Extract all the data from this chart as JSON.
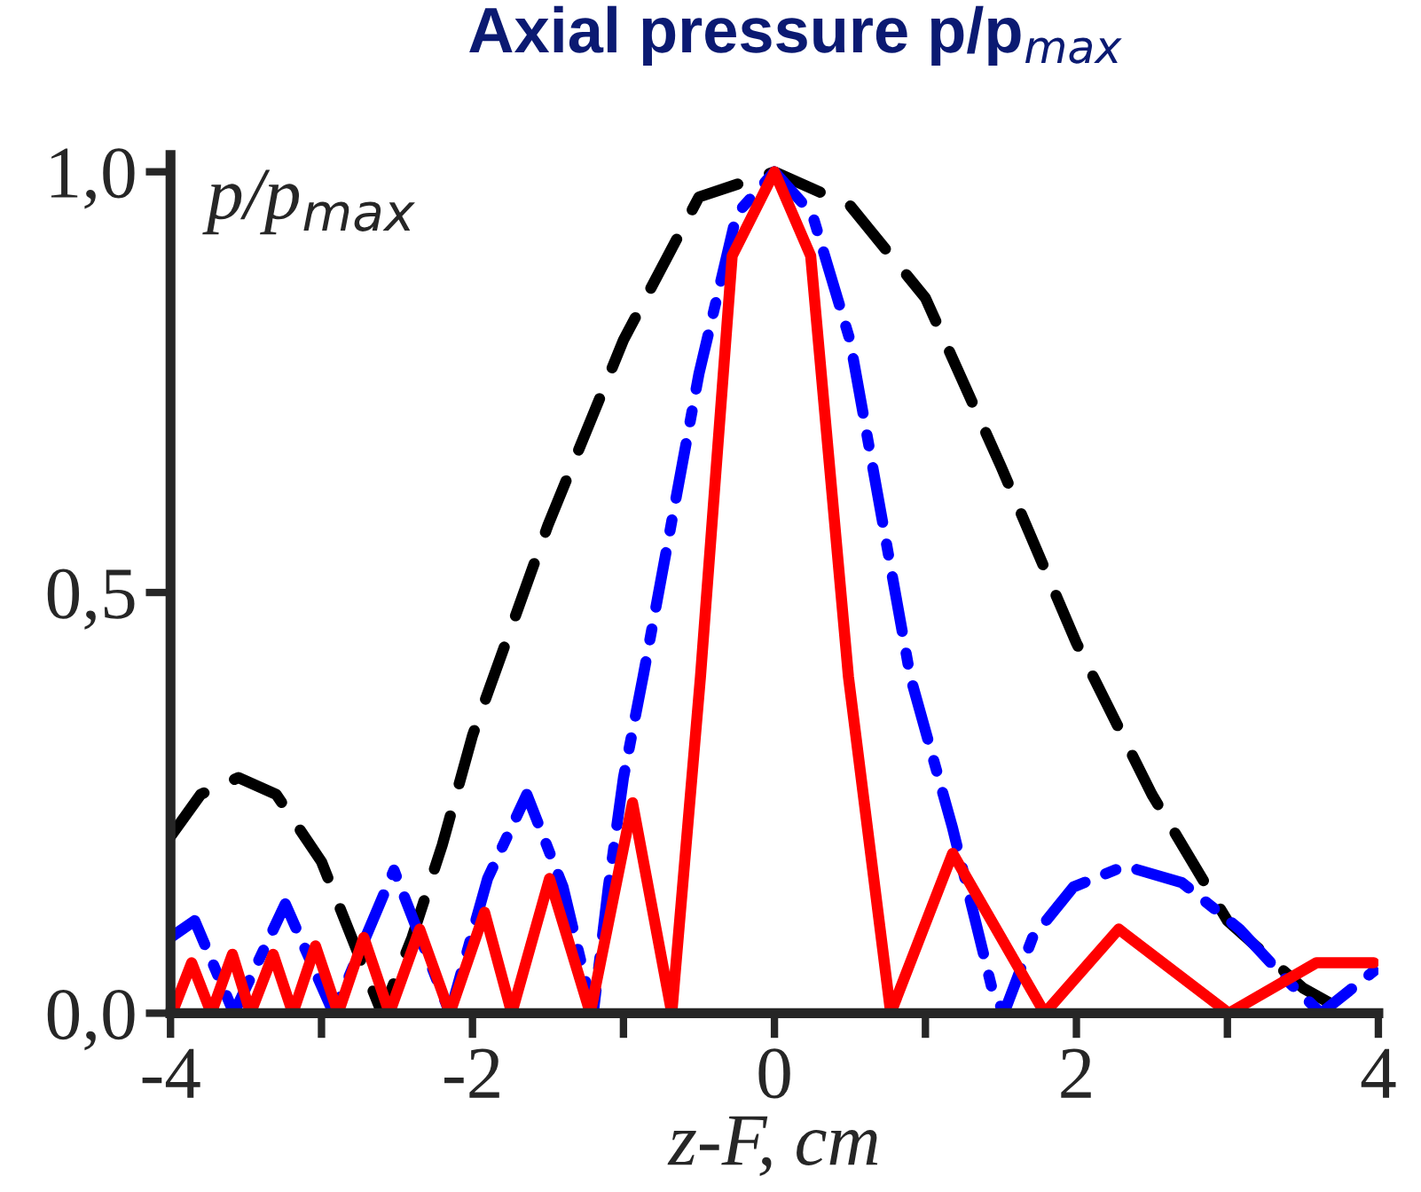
{
  "chart_data": {
    "type": "line",
    "title": "Axial pressure p/p$_{max}$",
    "xlabel": "z-F, cm",
    "ylabel": "p/p$_{max}$",
    "xlim": [
      -4,
      4
    ],
    "ylim": [
      0,
      1.02
    ],
    "xticks": [
      -4,
      {
        "value": -3,
        "label": null
      },
      -2,
      {
        "value": -1,
        "label": null
      },
      0,
      {
        "value": 1,
        "label": null
      },
      2,
      {
        "value": 3,
        "label": null
      },
      4
    ],
    "yticks": [
      {
        "value": 0,
        "label": "0,0"
      },
      {
        "value": 0.5,
        "label": "0,5"
      },
      {
        "value": 1,
        "label": "1,0"
      }
    ],
    "grid": false,
    "legend": false,
    "series": [
      {
        "color": "#000000",
        "line_style": "dashed",
        "x": [
          -4,
          -3.8,
          -3.55,
          -3.3,
          -3.0,
          -2.8,
          -2.6,
          -2.4,
          -2.2,
          -2.0,
          -1.5,
          -1.0,
          -0.5,
          0,
          0.5,
          1.0,
          1.5,
          2.0,
          2.5,
          3.0,
          3.5,
          3.8,
          3.85
        ],
        "values": [
          0.21,
          0.26,
          0.28,
          0.26,
          0.18,
          0.09,
          0.0,
          0.09,
          0.2,
          0.33,
          0.58,
          0.8,
          0.97,
          1.0,
          0.96,
          0.85,
          0.65,
          0.44,
          0.26,
          0.11,
          0.03,
          0.0,
          0.0
        ]
      },
      {
        "color": "#0000ff",
        "line_style": "dashdot",
        "x": [
          -4,
          -3.84,
          -3.58,
          -3.24,
          -2.92,
          -2.52,
          -2.15,
          -1.9,
          -1.64,
          -1.4,
          -1.2,
          -1.1,
          -1.0,
          -0.87,
          -0.5,
          -0.25,
          0,
          0.25,
          0.5,
          0.9,
          1.18,
          1.44,
          1.52,
          1.71,
          1.98,
          2.32,
          2.7,
          3.08,
          3.39,
          3.62,
          3.97
        ],
        "values": [
          0.09,
          0.11,
          0.0,
          0.13,
          0.0,
          0.17,
          0.0,
          0.16,
          0.26,
          0.15,
          0.0,
          0.15,
          0.28,
          0.4,
          0.76,
          0.95,
          1.0,
          0.95,
          0.8,
          0.4,
          0.22,
          0.03,
          0.0,
          0.09,
          0.15,
          0.175,
          0.155,
          0.1,
          0.04,
          0.0,
          0.05
        ]
      },
      {
        "color": "#ff0000",
        "line_style": "solid",
        "x": [
          -3.99,
          -3.86,
          -3.73,
          -3.59,
          -3.47,
          -3.32,
          -3.19,
          -3.04,
          -2.89,
          -2.72,
          -2.55,
          -2.35,
          -2.15,
          -1.92,
          -1.74,
          -1.49,
          -1.22,
          -0.94,
          -0.68,
          -0.49,
          -0.28,
          0,
          0.24,
          0.49,
          0.77,
          1.18,
          1.79,
          2.28,
          3.01,
          3.59,
          3.97
        ],
        "values": [
          0.0,
          0.06,
          0.0,
          0.07,
          0.0,
          0.07,
          0.0,
          0.08,
          0.0,
          0.09,
          0.0,
          0.1,
          0.0,
          0.12,
          0.0,
          0.16,
          0.0,
          0.25,
          0.0,
          0.4,
          0.9,
          1.0,
          0.9,
          0.4,
          0.0,
          0.19,
          0.0,
          0.1,
          0.0,
          0.06,
          0.06
        ]
      }
    ]
  }
}
